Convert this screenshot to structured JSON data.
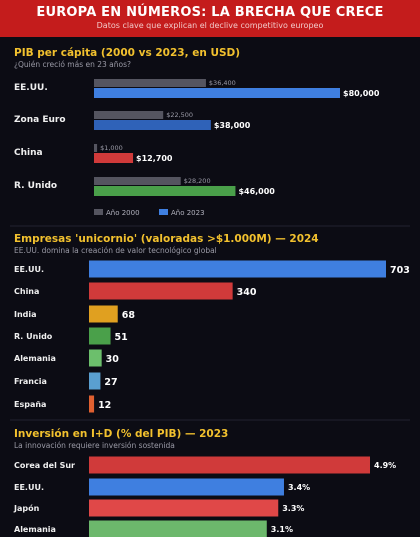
{
  "header": {
    "title": "EUROPA EN NÚMEROS: LA BRECHA QUE CRECE",
    "subtitle": "Datos clave que explican el declive competitivo europeo"
  },
  "chart_data": [
    {
      "type": "bar",
      "orientation": "horizontal",
      "title": "PIB per cápita (2000 vs 2023, en USD)",
      "subtitle": "¿Quién creció más en 23 años?",
      "categories": [
        "EE.UU.",
        "Zona Euro",
        "China",
        "R. Unido"
      ],
      "series": [
        {
          "name": "Año 2000",
          "values": [
            36400,
            22500,
            1000,
            28200
          ],
          "labels": [
            "$36,400",
            "$22,500",
            "$1,000",
            "$28,200"
          ],
          "color": "#555560"
        },
        {
          "name": "Año 2023",
          "values": [
            80000,
            38000,
            12700,
            46000
          ],
          "labels": [
            "$80,000",
            "$38,000",
            "$12,700",
            "$46,000"
          ],
          "colors": [
            "#3f7fe0",
            "#2f62b8",
            "#d03a3a",
            "#4aa04a"
          ]
        }
      ],
      "xlim": [
        0,
        80000
      ],
      "legend": "bottom-left"
    },
    {
      "type": "bar",
      "orientation": "horizontal",
      "title": "Empresas 'unicornio' (valoradas >$1.000M) — 2024",
      "subtitle": "EE.UU. domina la creación de valor tecnológico global",
      "categories": [
        "EE.UU.",
        "China",
        "India",
        "R. Unido",
        "Alemania",
        "Francia",
        "España"
      ],
      "values": [
        703,
        340,
        68,
        51,
        30,
        27,
        12
      ],
      "labels": [
        "703",
        "340",
        "68",
        "51",
        "30",
        "27",
        "12"
      ],
      "colors": [
        "#3f7fe0",
        "#d03a3a",
        "#e0a020",
        "#4aa04a",
        "#6cbf6c",
        "#5a9fd0",
        "#e06030"
      ],
      "xlim": [
        0,
        703
      ]
    },
    {
      "type": "bar",
      "orientation": "horizontal",
      "title": "Inversión en I+D (% del PIB) — 2023",
      "subtitle": "La innovación requiere inversión sostenida",
      "categories": [
        "Corea del Sur",
        "EE.UU.",
        "Japón",
        "Alemania"
      ],
      "values": [
        4.9,
        3.4,
        3.3,
        3.1
      ],
      "labels": [
        "4.9%",
        "3.4%",
        "3.3%",
        "3.1%"
      ],
      "colors": [
        "#d03a3a",
        "#3f7fe0",
        "#e04848",
        "#6cb86c"
      ],
      "xlim": [
        0,
        4.9
      ]
    }
  ]
}
